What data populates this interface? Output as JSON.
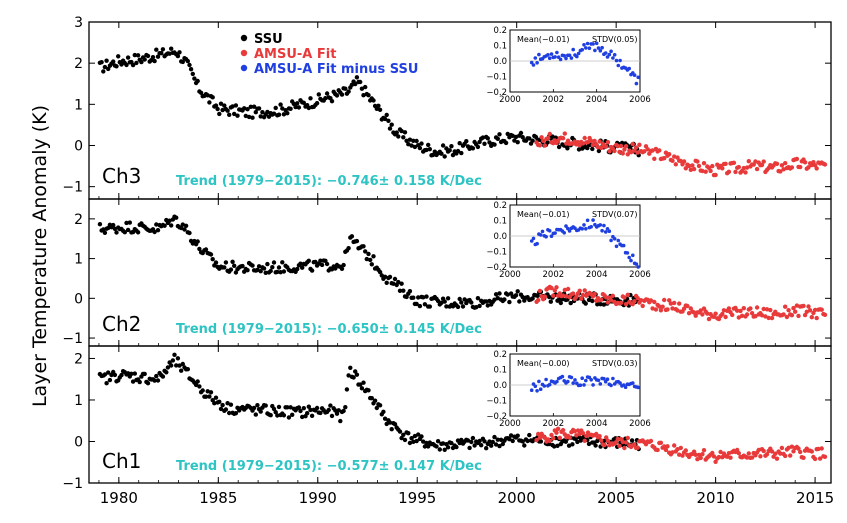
{
  "figure": {
    "ylabel": "Layer Temperature   Anomaly (K)",
    "x_ticks": [
      "1980",
      "1985",
      "1990",
      "1995",
      "2000",
      "2005",
      "2010",
      "2015"
    ],
    "legend": [
      {
        "label": "SSU",
        "color": "#000000"
      },
      {
        "label": "AMSU-A Fit",
        "color": "#e83a3a"
      },
      {
        "label": "AMSU-A Fit minus SSU",
        "color": "#1f3fe0"
      }
    ],
    "trend_color": "#2ec4c4",
    "colors": {
      "ssu": "#000000",
      "amsu": "#e83a3a",
      "diff": "#1f3fe0"
    }
  },
  "chart_data": [
    {
      "type": "scatter",
      "channel": "Ch3",
      "trend_text": "Trend (1979−2015): −0.746± 0.158 K/Dec",
      "xlim": [
        1978.5,
        2015.8
      ],
      "ylim": [
        -1.3,
        3.0
      ],
      "y_ticks": [
        -1,
        0,
        1,
        2,
        3
      ],
      "ssu_anchors": [
        [
          1979.1,
          1.9
        ],
        [
          1980.0,
          2.05
        ],
        [
          1981.0,
          2.1
        ],
        [
          1982.0,
          2.2
        ],
        [
          1982.9,
          2.3
        ],
        [
          1983.4,
          2.0
        ],
        [
          1984.0,
          1.4
        ],
        [
          1985.0,
          0.9
        ],
        [
          1986.5,
          0.8
        ],
        [
          1988.0,
          0.85
        ],
        [
          1990.0,
          1.1
        ],
        [
          1991.5,
          1.3
        ],
        [
          1992.0,
          1.55
        ],
        [
          1993.0,
          0.9
        ],
        [
          1994.0,
          0.3
        ],
        [
          1995.0,
          0.0
        ],
        [
          1996.0,
          -0.15
        ],
        [
          1997.0,
          -0.1
        ],
        [
          1998.0,
          0.05
        ],
        [
          1999.0,
          0.15
        ],
        [
          2000.0,
          0.2
        ],
        [
          2006.0,
          -0.1
        ]
      ],
      "amsu_anchors": [
        [
          2001.0,
          0.05
        ],
        [
          2002.0,
          0.2
        ],
        [
          2003.0,
          0.15
        ],
        [
          2005.0,
          -0.05
        ],
        [
          2006.0,
          -0.1
        ],
        [
          2007.0,
          -0.2
        ],
        [
          2008.0,
          -0.35
        ],
        [
          2009.0,
          -0.5
        ],
        [
          2010.0,
          -0.6
        ],
        [
          2012.0,
          -0.5
        ],
        [
          2013.0,
          -0.55
        ],
        [
          2014.0,
          -0.45
        ],
        [
          2015.5,
          -0.5
        ]
      ],
      "inset": {
        "mean_text": "Mean(−0.01)",
        "stdv_text": "STDV(0.05)",
        "xlim": [
          2000,
          2006
        ],
        "ylim": [
          -0.2,
          0.2
        ],
        "y_ticks": [
          "0.2",
          "0.1",
          "0.0",
          "−0.1",
          "−0.2"
        ],
        "x_ticks": [
          "2000",
          "2002",
          "2004",
          "2006"
        ],
        "diff_anchors": [
          [
            2001.0,
            0.0
          ],
          [
            2001.5,
            0.02
          ],
          [
            2002.0,
            0.05
          ],
          [
            2002.5,
            0.03
          ],
          [
            2003.0,
            0.05
          ],
          [
            2003.5,
            0.08
          ],
          [
            2004.0,
            0.1
          ],
          [
            2004.5,
            0.05
          ],
          [
            2005.0,
            0.0
          ],
          [
            2005.4,
            -0.05
          ],
          [
            2005.8,
            -0.12
          ]
        ]
      }
    },
    {
      "type": "scatter",
      "channel": "Ch2",
      "trend_text": "Trend (1979−2015): −0.650± 0.145 K/Dec",
      "xlim": [
        1978.5,
        2015.8
      ],
      "ylim": [
        -1.2,
        2.5
      ],
      "y_ticks": [
        -1,
        0,
        1,
        2
      ],
      "ssu_anchors": [
        [
          1979.1,
          1.75
        ],
        [
          1980.5,
          1.8
        ],
        [
          1982.0,
          1.75
        ],
        [
          1982.8,
          2.0
        ],
        [
          1983.3,
          1.8
        ],
        [
          1984.0,
          1.3
        ],
        [
          1985.0,
          0.8
        ],
        [
          1987.0,
          0.75
        ],
        [
          1989.0,
          0.8
        ],
        [
          1991.3,
          0.85
        ],
        [
          1991.6,
          1.5
        ],
        [
          1992.5,
          1.1
        ],
        [
          1993.5,
          0.5
        ],
        [
          1995.0,
          -0.05
        ],
        [
          1996.0,
          -0.1
        ],
        [
          1998.0,
          -0.1
        ],
        [
          2000.0,
          0.05
        ],
        [
          2006.0,
          -0.05
        ]
      ],
      "amsu_anchors": [
        [
          2001.0,
          0.05
        ],
        [
          2002.0,
          0.2
        ],
        [
          2003.0,
          0.1
        ],
        [
          2005.0,
          -0.05
        ],
        [
          2006.0,
          -0.05
        ],
        [
          2007.0,
          -0.15
        ],
        [
          2008.0,
          -0.2
        ],
        [
          2009.0,
          -0.35
        ],
        [
          2010.0,
          -0.4
        ],
        [
          2012.0,
          -0.35
        ],
        [
          2013.0,
          -0.4
        ],
        [
          2014.0,
          -0.3
        ],
        [
          2015.5,
          -0.4
        ]
      ],
      "inset": {
        "mean_text": "Mean(−0.01)",
        "stdv_text": "STDV(0.07)",
        "xlim": [
          2000,
          2006
        ],
        "ylim": [
          -0.2,
          0.2
        ],
        "y_ticks": [
          "0.2",
          "0.1",
          "0.0",
          "−0.1",
          "−0.2"
        ],
        "x_ticks": [
          "2000",
          "2002",
          "2004",
          "2006"
        ],
        "diff_anchors": [
          [
            2001.0,
            -0.05
          ],
          [
            2001.5,
            0.0
          ],
          [
            2002.0,
            0.03
          ],
          [
            2002.5,
            0.05
          ],
          [
            2003.0,
            0.05
          ],
          [
            2003.5,
            0.07
          ],
          [
            2004.0,
            0.08
          ],
          [
            2004.5,
            0.02
          ],
          [
            2005.0,
            -0.05
          ],
          [
            2005.5,
            -0.12
          ],
          [
            2005.9,
            -0.18
          ]
        ]
      }
    },
    {
      "type": "scatter",
      "channel": "Ch1",
      "trend_text": "Trend (1979−2015): −0.577± 0.147 K/Dec",
      "xlim": [
        1978.5,
        2015.8
      ],
      "ylim": [
        -1.0,
        2.3
      ],
      "y_ticks": [
        -1,
        0,
        1,
        2
      ],
      "ssu_anchors": [
        [
          1979.1,
          1.5
        ],
        [
          1980.0,
          1.6
        ],
        [
          1982.0,
          1.5
        ],
        [
          1982.8,
          1.95
        ],
        [
          1983.5,
          1.6
        ],
        [
          1984.5,
          1.1
        ],
        [
          1985.5,
          0.8
        ],
        [
          1987.0,
          0.75
        ],
        [
          1989.0,
          0.7
        ],
        [
          1990.5,
          0.75
        ],
        [
          1991.3,
          0.6
        ],
        [
          1991.6,
          1.75
        ],
        [
          1992.5,
          1.2
        ],
        [
          1993.5,
          0.5
        ],
        [
          1994.5,
          0.1
        ],
        [
          1996.0,
          -0.1
        ],
        [
          1998.0,
          -0.05
        ],
        [
          2000.0,
          0.05
        ],
        [
          2006.0,
          -0.05
        ]
      ],
      "amsu_anchors": [
        [
          2001.0,
          0.05
        ],
        [
          2002.0,
          0.2
        ],
        [
          2003.0,
          0.15
        ],
        [
          2005.0,
          -0.05
        ],
        [
          2006.0,
          -0.05
        ],
        [
          2007.0,
          -0.1
        ],
        [
          2008.0,
          -0.2
        ],
        [
          2009.0,
          -0.3
        ],
        [
          2010.0,
          -0.35
        ],
        [
          2012.0,
          -0.3
        ],
        [
          2013.0,
          -0.3
        ],
        [
          2014.0,
          -0.25
        ],
        [
          2015.5,
          -0.3
        ]
      ],
      "inset": {
        "mean_text": "Mean(−0.00)",
        "stdv_text": "STDV(0.03)",
        "xlim": [
          2000,
          2006
        ],
        "ylim": [
          -0.2,
          0.2
        ],
        "y_ticks": [
          "0.2",
          "0.1",
          "0.0",
          "−0.1",
          "−0.2"
        ],
        "x_ticks": [
          "2000",
          "2002",
          "2004",
          "2006"
        ],
        "diff_anchors": [
          [
            2001.0,
            -0.02
          ],
          [
            2001.5,
            0.0
          ],
          [
            2002.0,
            0.02
          ],
          [
            2002.5,
            0.03
          ],
          [
            2003.0,
            0.02
          ],
          [
            2003.5,
            0.02
          ],
          [
            2004.0,
            0.03
          ],
          [
            2004.5,
            0.02
          ],
          [
            2005.0,
            0.01
          ],
          [
            2005.5,
            0.0
          ],
          [
            2005.9,
            -0.02
          ]
        ]
      }
    }
  ]
}
